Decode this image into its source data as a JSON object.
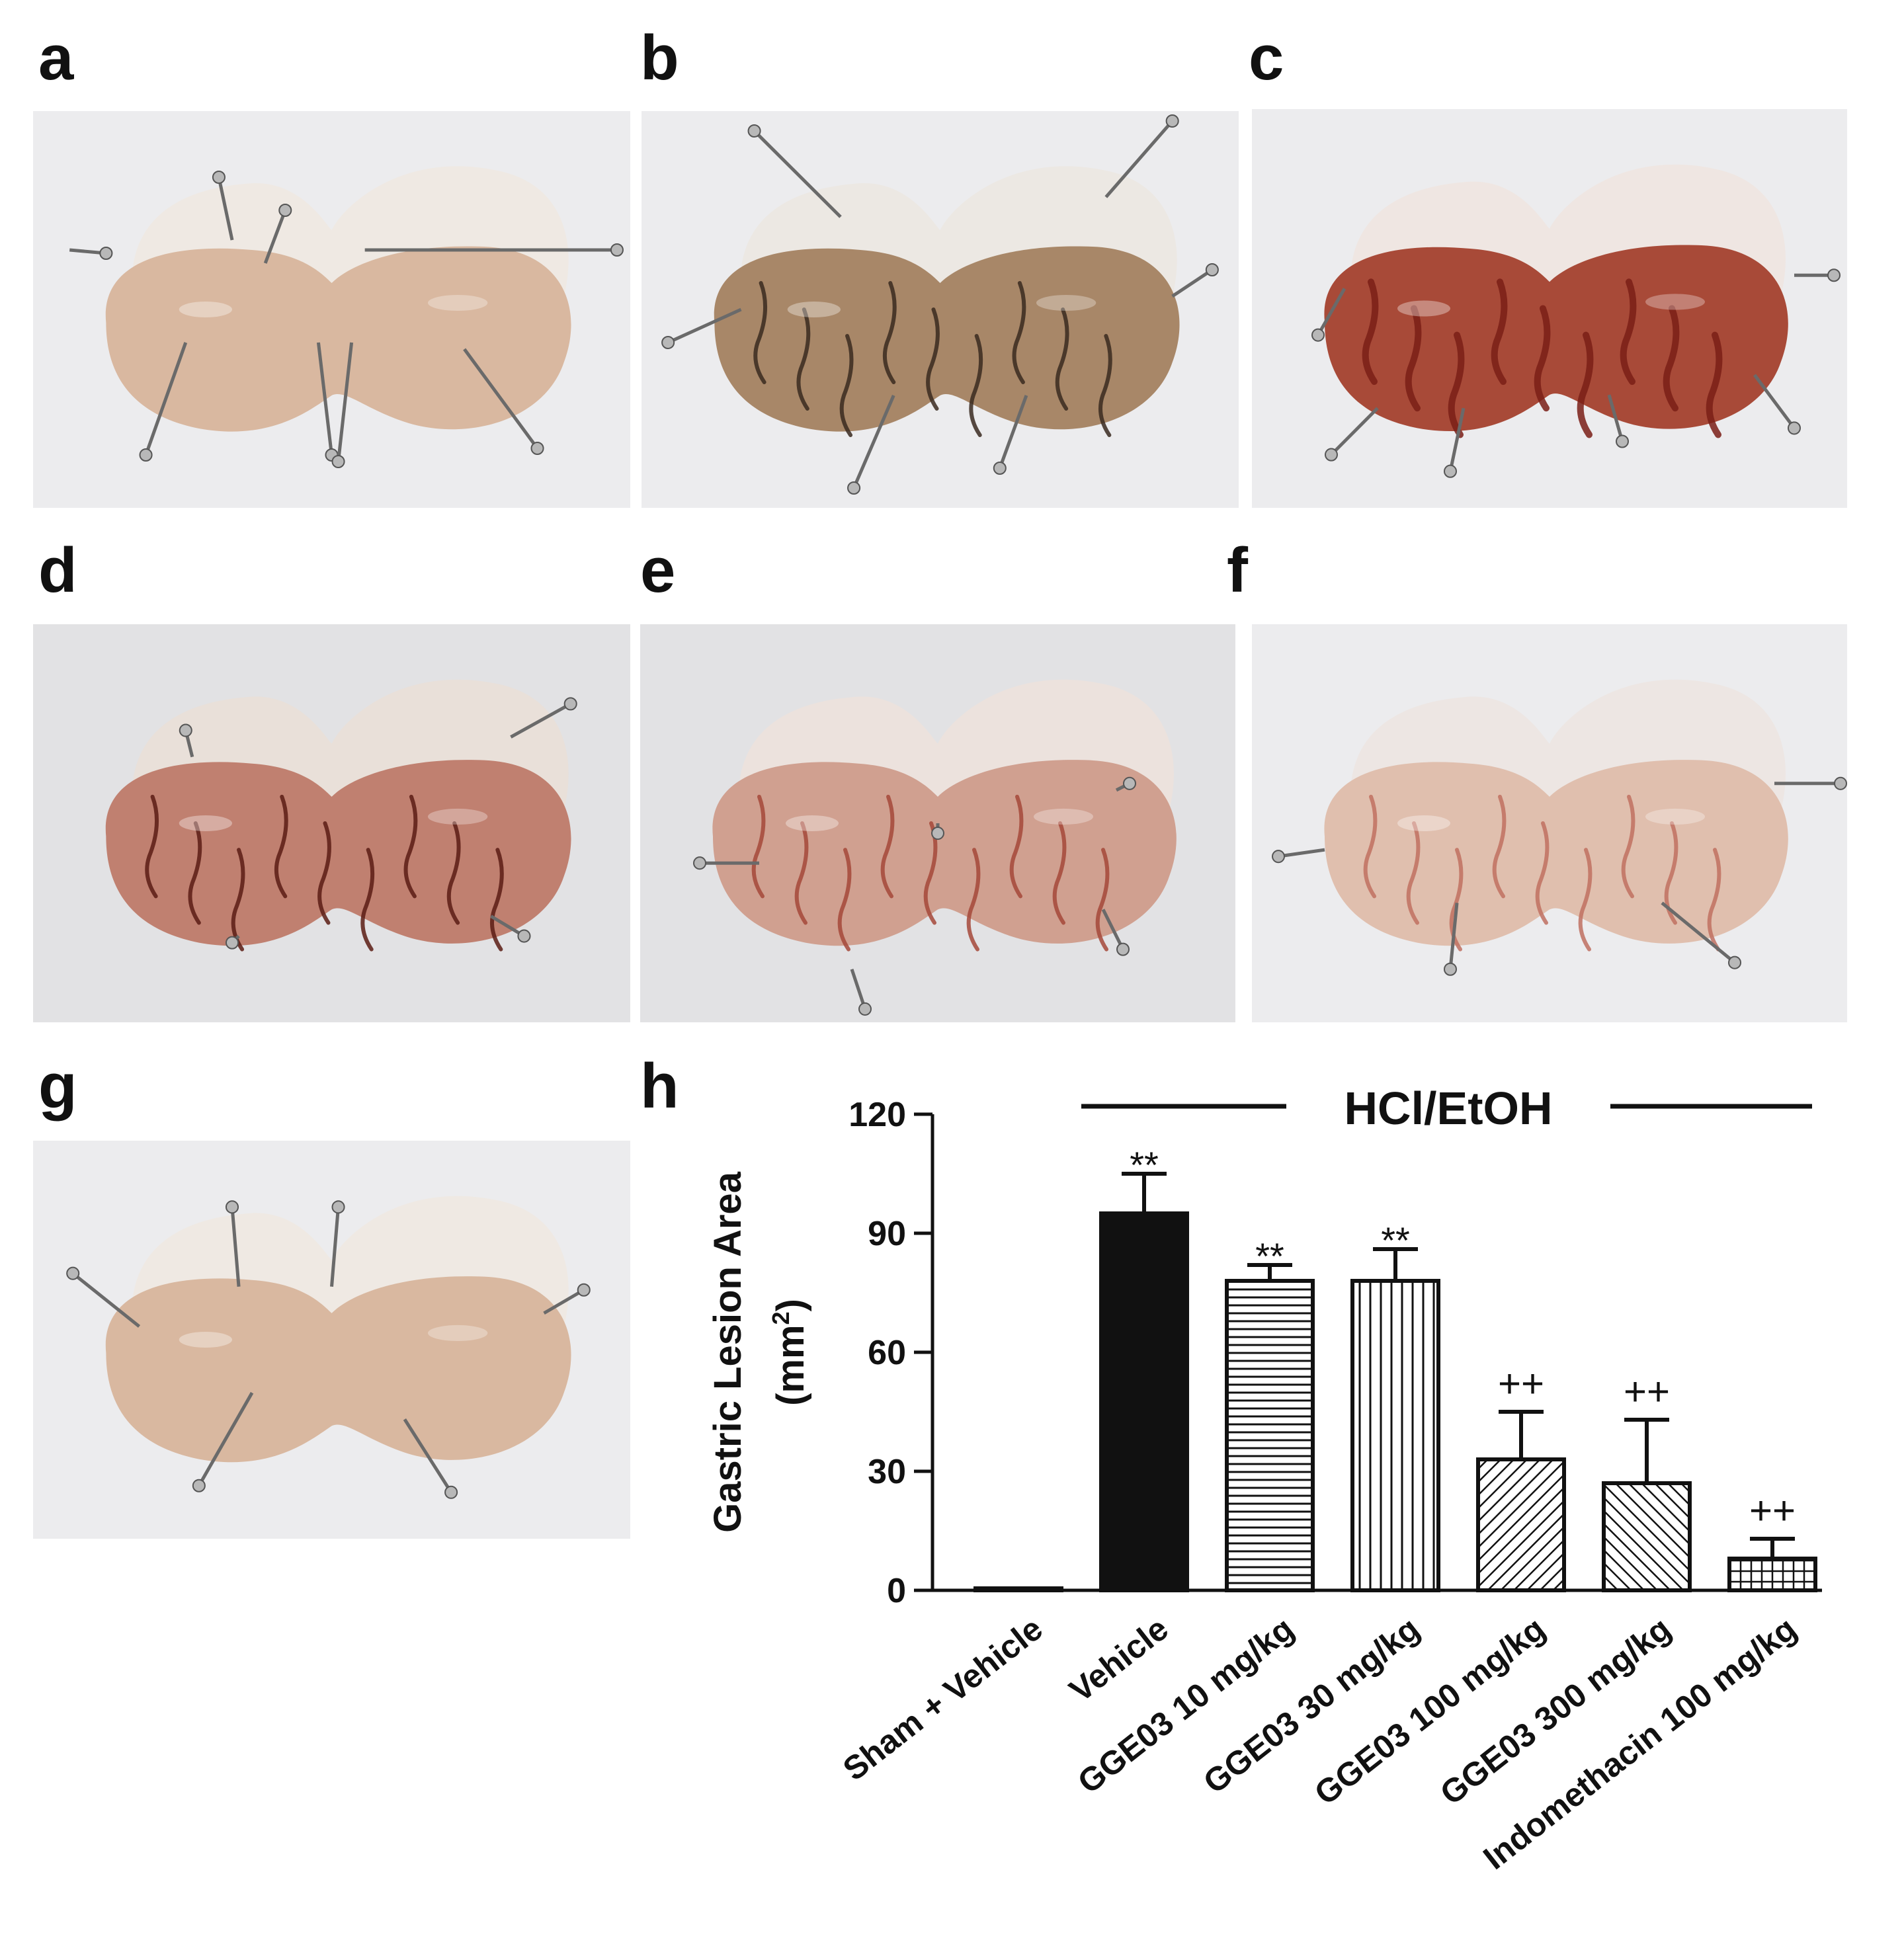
{
  "figure": {
    "panels": [
      {
        "id": "a",
        "label": "a",
        "stain": "none"
      },
      {
        "id": "b",
        "label": "b",
        "stain": "dark-streaks"
      },
      {
        "id": "c",
        "label": "c",
        "stain": "red-hemorrhage"
      },
      {
        "id": "d",
        "label": "d",
        "stain": "red-dark-streaks"
      },
      {
        "id": "e",
        "label": "e",
        "stain": "light-red"
      },
      {
        "id": "f",
        "label": "f",
        "stain": "very-light"
      },
      {
        "id": "g",
        "label": "g",
        "stain": "none"
      }
    ],
    "chart_panel_label": "h"
  },
  "chart_data": {
    "type": "bar",
    "title": "",
    "group_label": "HCl/EtOH",
    "ylabel_line1": "Gastric Lesion Area",
    "ylabel_line2": "(mm",
    "ylabel_sup": "2",
    "ylabel_close": ")",
    "ylim": [
      0,
      120
    ],
    "yticks": [
      0,
      30,
      60,
      90,
      120
    ],
    "categories": [
      "Sham + Vehicle",
      "Vehicle",
      "GGE03 10 mg/kg",
      "GGE03 30 mg/kg",
      "GGE03 100 mg/kg",
      "GGE03 300 mg/kg",
      "Indomethacin 100 mg/kg"
    ],
    "values": [
      0,
      95,
      78,
      78,
      33,
      27,
      8
    ],
    "errors": [
      0,
      10,
      4,
      8,
      12,
      16,
      5
    ],
    "annotations": [
      "",
      "**",
      "**",
      "**",
      "++",
      "++",
      "++"
    ],
    "fills": [
      "solid-white",
      "solid-black",
      "horizontal-lines",
      "vertical-lines",
      "diagonal-dense",
      "diagonal-reverse",
      "crosshatch"
    ],
    "grid": false,
    "colors": {
      "ink": "#111111"
    }
  }
}
